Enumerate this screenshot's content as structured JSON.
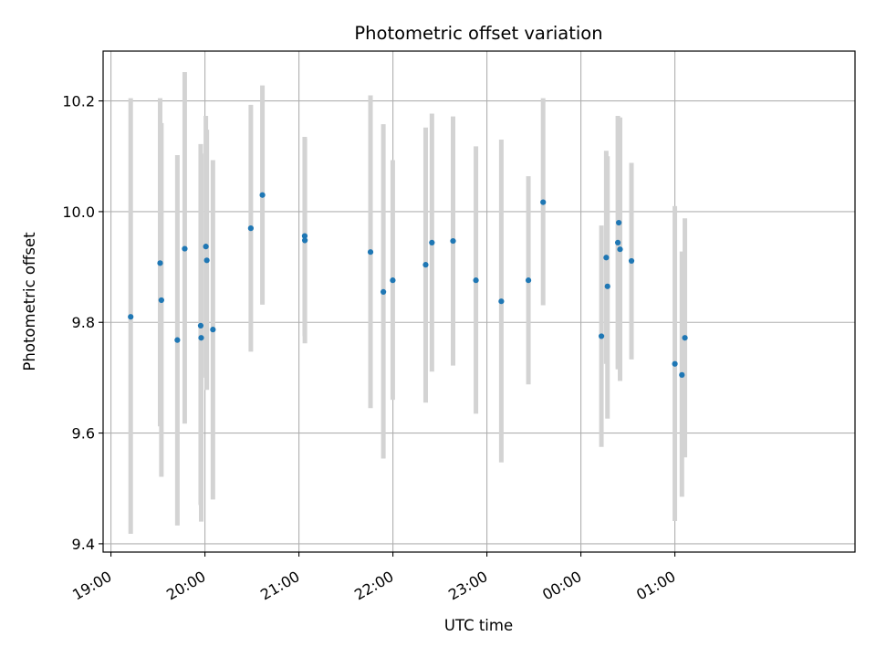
{
  "chart_data": {
    "type": "scatter",
    "title": "Photometric offset variation",
    "xlabel": "UTC time",
    "ylabel": "Photometric offset",
    "grid": true,
    "x_unit": "minutes since 19:00 UTC",
    "xlim": [
      -5,
      475
    ],
    "ylim": [
      9.385,
      10.29
    ],
    "x_ticks": [
      {
        "value": 0,
        "label": "19:00"
      },
      {
        "value": 60,
        "label": "20:00"
      },
      {
        "value": 120,
        "label": "21:00"
      },
      {
        "value": 180,
        "label": "22:00"
      },
      {
        "value": 240,
        "label": "23:00"
      },
      {
        "value": 300,
        "label": "00:00"
      },
      {
        "value": 360,
        "label": "01:00"
      }
    ],
    "y_ticks": [
      {
        "value": 9.4,
        "label": "9.4"
      },
      {
        "value": 9.6,
        "label": "9.6"
      },
      {
        "value": 9.8,
        "label": "9.8"
      },
      {
        "value": 10.0,
        "label": "10.0"
      },
      {
        "value": 10.2,
        "label": "10.2"
      }
    ],
    "marker_color": "#1f77b4",
    "errorbar_color": "#d3d3d3",
    "points": [
      {
        "x": 12.6,
        "y": 9.81,
        "ylo": 9.418,
        "yhi": 10.205
      },
      {
        "x": 31.4,
        "y": 9.907,
        "ylo": 9.612,
        "yhi": 10.205
      },
      {
        "x": 32.2,
        "y": 9.84,
        "ylo": 9.521,
        "yhi": 10.16
      },
      {
        "x": 42.4,
        "y": 9.768,
        "ylo": 9.433,
        "yhi": 10.102
      },
      {
        "x": 47.1,
        "y": 9.933,
        "ylo": 9.617,
        "yhi": 10.252
      },
      {
        "x": 57.3,
        "y": 9.794,
        "ylo": 9.47,
        "yhi": 10.122
      },
      {
        "x": 57.6,
        "y": 9.772,
        "ylo": 9.44,
        "yhi": 10.105
      },
      {
        "x": 60.6,
        "y": 9.937,
        "ylo": 9.7,
        "yhi": 10.173
      },
      {
        "x": 61.2,
        "y": 9.912,
        "ylo": 9.678,
        "yhi": 10.148
      },
      {
        "x": 65.1,
        "y": 9.787,
        "ylo": 9.48,
        "yhi": 10.093
      },
      {
        "x": 89.3,
        "y": 9.97,
        "ylo": 9.747,
        "yhi": 10.193
      },
      {
        "x": 96.7,
        "y": 10.03,
        "ylo": 9.832,
        "yhi": 10.228
      },
      {
        "x": 123.7,
        "y": 9.956,
        "ylo": 9.775,
        "yhi": 10.135
      },
      {
        "x": 123.8,
        "y": 9.948,
        "ylo": 9.762,
        "yhi": 10.132
      },
      {
        "x": 165.7,
        "y": 9.927,
        "ylo": 9.645,
        "yhi": 10.21
      },
      {
        "x": 173.9,
        "y": 9.855,
        "ylo": 9.554,
        "yhi": 10.158
      },
      {
        "x": 179.9,
        "y": 9.876,
        "ylo": 9.66,
        "yhi": 10.093
      },
      {
        "x": 200.9,
        "y": 9.904,
        "ylo": 9.655,
        "yhi": 10.152
      },
      {
        "x": 204.9,
        "y": 9.944,
        "ylo": 9.711,
        "yhi": 10.177
      },
      {
        "x": 218.4,
        "y": 9.947,
        "ylo": 9.722,
        "yhi": 10.172
      },
      {
        "x": 233.0,
        "y": 9.876,
        "ylo": 9.635,
        "yhi": 10.118
      },
      {
        "x": 249.2,
        "y": 9.838,
        "ylo": 9.547,
        "yhi": 10.13
      },
      {
        "x": 266.5,
        "y": 9.876,
        "ylo": 9.688,
        "yhi": 10.064
      },
      {
        "x": 275.9,
        "y": 10.017,
        "ylo": 9.831,
        "yhi": 10.205
      },
      {
        "x": 313.1,
        "y": 9.775,
        "ylo": 9.575,
        "yhi": 9.975
      },
      {
        "x": 316.2,
        "y": 9.917,
        "ylo": 9.725,
        "yhi": 10.11
      },
      {
        "x": 317.0,
        "y": 9.865,
        "ylo": 9.626,
        "yhi": 10.1
      },
      {
        "x": 323.6,
        "y": 9.944,
        "ylo": 9.715,
        "yhi": 10.173
      },
      {
        "x": 324.2,
        "y": 9.98,
        "ylo": 9.79,
        "yhi": 10.17
      },
      {
        "x": 325.0,
        "y": 9.932,
        "ylo": 9.694,
        "yhi": 10.17
      },
      {
        "x": 332.3,
        "y": 9.911,
        "ylo": 9.733,
        "yhi": 10.088
      },
      {
        "x": 360.0,
        "y": 9.725,
        "ylo": 9.441,
        "yhi": 10.01
      },
      {
        "x": 364.5,
        "y": 9.705,
        "ylo": 9.485,
        "yhi": 9.928
      },
      {
        "x": 366.4,
        "y": 9.772,
        "ylo": 9.556,
        "yhi": 9.988
      }
    ]
  }
}
